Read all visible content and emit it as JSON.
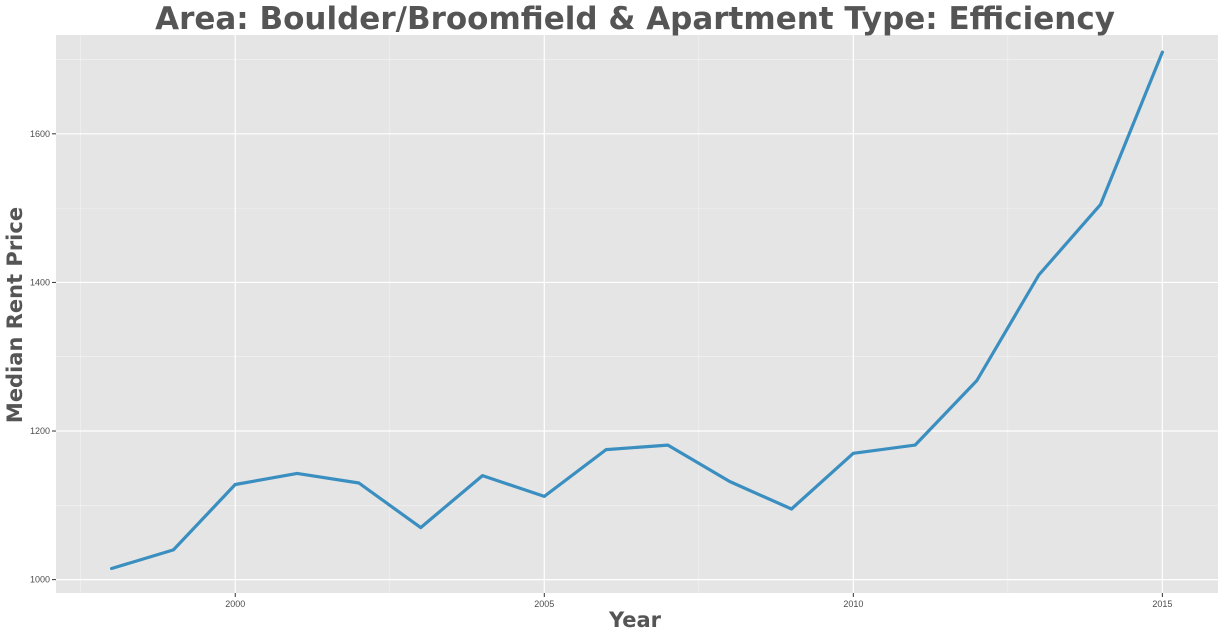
{
  "chart_data": {
    "type": "line",
    "title": "Area: Boulder/Broomfield & Apartment Type: Efficiency",
    "xlabel": "Year",
    "ylabel": "Median Rent Price",
    "x": [
      1998,
      1999,
      2000,
      2001,
      2002,
      2003,
      2004,
      2005,
      2006,
      2007,
      2008,
      2009,
      2010,
      2011,
      2012,
      2013,
      2014,
      2015
    ],
    "series": [
      {
        "values": [
          1015,
          1040,
          1128,
          1143,
          1130,
          1070,
          1140,
          1112,
          1175,
          1181,
          1132,
          1095,
          1170,
          1181,
          1268,
          1410,
          1505,
          1710
        ]
      }
    ],
    "xlim": [
      1997.1,
      2015.9
    ],
    "ylim": [
      982,
      1733
    ],
    "x_ticks": [
      "2000",
      "2005",
      "2010",
      "2015"
    ],
    "y_ticks": [
      "1000",
      "1200",
      "1400",
      "1600"
    ],
    "grid": true,
    "line_color": "#3a8fc0",
    "panel_color": "#e5e5e5",
    "grid_color": "#ffffff"
  }
}
